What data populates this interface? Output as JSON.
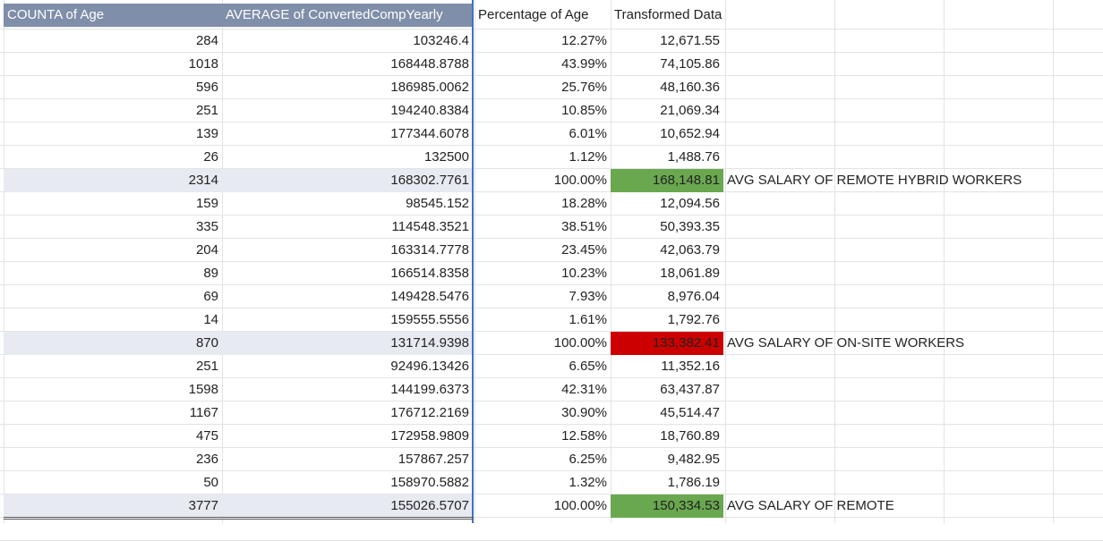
{
  "headers": {
    "counta": "COUNTA of Age",
    "average": "AVERAGE of ConvertedCompYearly",
    "percentage": "Percentage of Age",
    "transformed": "Transformed Data"
  },
  "colors": {
    "pivot_header": "#7f8ea9",
    "total_band": "#e7eaf1",
    "highlight_green": "#6aa84f",
    "highlight_red": "#cc0000",
    "pivot_border": "#3d72c9"
  },
  "rows": [
    {
      "count": "284",
      "avg": "103246.4",
      "pct": "12.27%",
      "trans": "12,671.55",
      "note": "",
      "total": false,
      "hl": ""
    },
    {
      "count": "1018",
      "avg": "168448.8788",
      "pct": "43.99%",
      "trans": "74,105.86",
      "note": "",
      "total": false,
      "hl": ""
    },
    {
      "count": "596",
      "avg": "186985.0062",
      "pct": "25.76%",
      "trans": "48,160.36",
      "note": "",
      "total": false,
      "hl": ""
    },
    {
      "count": "251",
      "avg": "194240.8384",
      "pct": "10.85%",
      "trans": "21,069.34",
      "note": "",
      "total": false,
      "hl": ""
    },
    {
      "count": "139",
      "avg": "177344.6078",
      "pct": "6.01%",
      "trans": "10,652.94",
      "note": "",
      "total": false,
      "hl": ""
    },
    {
      "count": "26",
      "avg": "132500",
      "pct": "1.12%",
      "trans": "1,488.76",
      "note": "",
      "total": false,
      "hl": ""
    },
    {
      "count": "2314",
      "avg": "168302.7761",
      "pct": "100.00%",
      "trans": "168,148.81",
      "note": "AVG SALARY OF REMOTE HYBRID WORKERS",
      "total": true,
      "hl": "green"
    },
    {
      "count": "159",
      "avg": "98545.152",
      "pct": "18.28%",
      "trans": "12,094.56",
      "note": "",
      "total": false,
      "hl": ""
    },
    {
      "count": "335",
      "avg": "114548.3521",
      "pct": "38.51%",
      "trans": "50,393.35",
      "note": "",
      "total": false,
      "hl": ""
    },
    {
      "count": "204",
      "avg": "163314.7778",
      "pct": "23.45%",
      "trans": "42,063.79",
      "note": "",
      "total": false,
      "hl": ""
    },
    {
      "count": "89",
      "avg": "166514.8358",
      "pct": "10.23%",
      "trans": "18,061.89",
      "note": "",
      "total": false,
      "hl": ""
    },
    {
      "count": "69",
      "avg": "149428.5476",
      "pct": "7.93%",
      "trans": "8,976.04",
      "note": "",
      "total": false,
      "hl": ""
    },
    {
      "count": "14",
      "avg": "159555.5556",
      "pct": "1.61%",
      "trans": "1,792.76",
      "note": "",
      "total": false,
      "hl": ""
    },
    {
      "count": "870",
      "avg": "131714.9398",
      "pct": "100.00%",
      "trans": "133,382.41",
      "note": "AVG SALARY OF ON-SITE WORKERS",
      "total": true,
      "hl": "red"
    },
    {
      "count": "251",
      "avg": "92496.13426",
      "pct": "6.65%",
      "trans": "11,352.16",
      "note": "",
      "total": false,
      "hl": ""
    },
    {
      "count": "1598",
      "avg": "144199.6373",
      "pct": "42.31%",
      "trans": "63,437.87",
      "note": "",
      "total": false,
      "hl": ""
    },
    {
      "count": "1167",
      "avg": "176712.2169",
      "pct": "30.90%",
      "trans": "45,514.47",
      "note": "",
      "total": false,
      "hl": ""
    },
    {
      "count": "475",
      "avg": "172958.9809",
      "pct": "12.58%",
      "trans": "18,760.89",
      "note": "",
      "total": false,
      "hl": ""
    },
    {
      "count": "236",
      "avg": "157867.257",
      "pct": "6.25%",
      "trans": "9,482.95",
      "note": "",
      "total": false,
      "hl": ""
    },
    {
      "count": "50",
      "avg": "158970.5882",
      "pct": "1.32%",
      "trans": "1,786.19",
      "note": "",
      "total": false,
      "hl": ""
    },
    {
      "count": "3777",
      "avg": "155026.5707",
      "pct": "100.00%",
      "trans": "150,334.53",
      "note": "AVG SALARY OF REMOTE",
      "total": true,
      "hl": "green"
    }
  ]
}
